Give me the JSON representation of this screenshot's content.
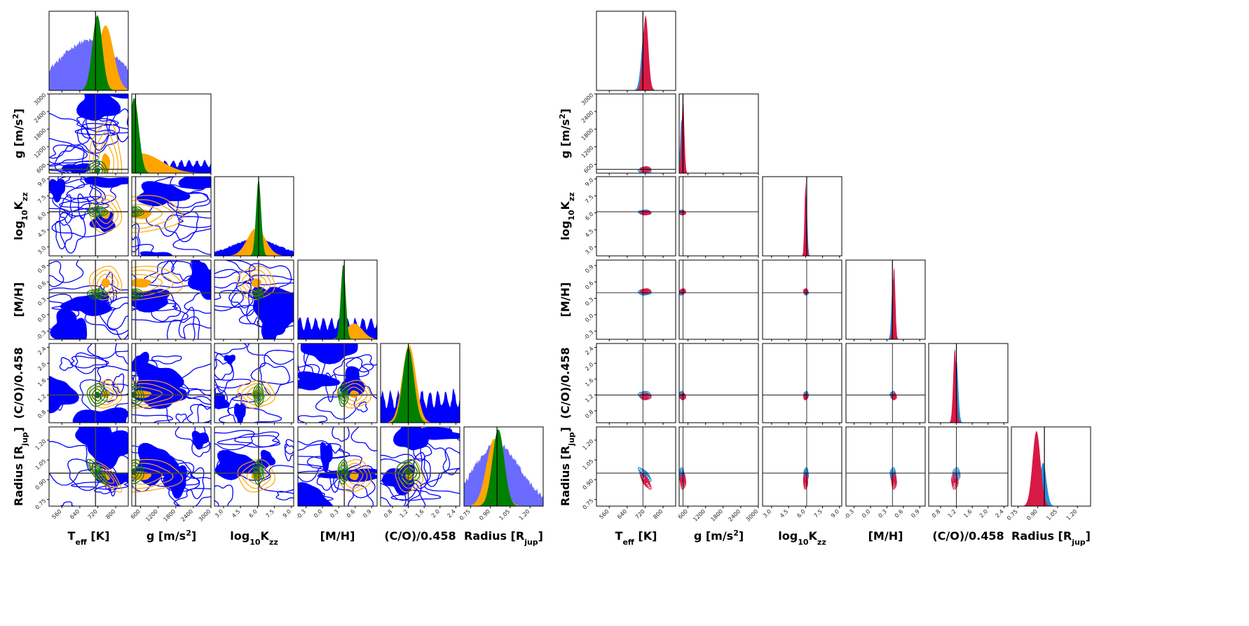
{
  "chart_data": {
    "type": "corner",
    "parameters": [
      {
        "key": "Teff",
        "label": {
          "main": "T",
          "sub": "eff",
          "sup": "",
          "tail": " [K]"
        },
        "range": [
          503,
          856
        ],
        "ticks": [
          "560",
          "640",
          "720",
          "800"
        ],
        "truth": 710
      },
      {
        "key": "g",
        "label": {
          "main": "g [m/s",
          "sub": "",
          "sup": "2",
          "tail": "]"
        },
        "range": [
          300,
          3000
        ],
        "ticks": [
          "600",
          "1200",
          "1800",
          "2400",
          "3000"
        ],
        "truth": 430
      },
      {
        "key": "Kzz",
        "label": {
          "main": "log",
          "sub": "10",
          "sup": "",
          "tail": "K",
          "tail_sub": "zz"
        },
        "range": [
          2.2,
          9.2
        ],
        "ticks": [
          "3.0",
          "4.5",
          "6.0",
          "7.5",
          "9.0"
        ],
        "truth": 6.1
      },
      {
        "key": "MH",
        "label": {
          "main": "[M/H]",
          "sub": "",
          "sup": "",
          "tail": ""
        },
        "range": [
          -0.45,
          1.0
        ],
        "ticks": [
          "-0.3",
          "0.0",
          "0.3",
          "0.6",
          "0.9"
        ],
        "truth": 0.4
      },
      {
        "key": "CO",
        "label": {
          "main": "(C/O)/0.458",
          "sub": "",
          "sup": "",
          "tail": ""
        },
        "range": [
          0.5,
          2.5
        ],
        "ticks": [
          "0.8",
          "1.2",
          "1.6",
          "2.0",
          "2.4"
        ],
        "truth": 1.2
      },
      {
        "key": "R",
        "label": {
          "main": "Radius [R",
          "sub": "jup",
          "sup": "",
          "tail": "]"
        },
        "range": [
          0.7,
          1.3
        ],
        "ticks": [
          "0.75",
          "0.90",
          "1.05",
          "1.20"
        ],
        "truth": 0.95
      }
    ],
    "figures": [
      {
        "name": "left-corner",
        "series": [
          {
            "name": "blue",
            "color": "#0000ff",
            "hist_color": "#0000ff",
            "noisy": true,
            "dists": {
              "Teff": {
                "mean": 680,
                "sd": 130,
                "relative_peak": 0.6
              },
              "g": {
                "type": "uniform",
                "relative_peak": 0.12
              },
              "Kzz": {
                "mean": 5.8,
                "sd": 2.0,
                "relative_peak": 0.2
              },
              "MH": {
                "type": "uniform",
                "relative_peak": 0.2
              },
              "CO": {
                "type": "uniform",
                "relative_peak": 0.3
              },
              "R": {
                "mean": 0.95,
                "sd": 0.17,
                "relative_peak": 0.75
              }
            }
          },
          {
            "name": "orange",
            "color": "#ffa500",
            "hist_color": "#ffa500",
            "dists": {
              "Teff": {
                "mean": 755,
                "sd": 35,
                "relative_peak": 0.82
              },
              "g": {
                "mean": 600,
                "sd": 700,
                "relative_peak": 0.25
              },
              "Kzz": {
                "mean": 5.9,
                "sd": 0.8,
                "relative_peak": 0.35
              },
              "MH": {
                "mean": 0.58,
                "sd": 0.15,
                "relative_peak": 0.2
              },
              "CO": {
                "mean": 1.22,
                "sd": 0.17,
                "relative_peak": 0.98
              },
              "R": {
                "mean": 0.93,
                "sd": 0.06,
                "relative_peak": 0.85
              }
            }
          },
          {
            "name": "green",
            "color": "#008000",
            "hist_color": "#008000",
            "dists": {
              "Teff": {
                "mean": 718,
                "sd": 22,
                "relative_peak": 0.95
              },
              "g": {
                "mean": 380,
                "sd": 160,
                "relative_peak": 0.95
              },
              "Kzz": {
                "mean": 6.1,
                "sd": 0.22,
                "relative_peak": 0.97
              },
              "MH": {
                "mean": 0.38,
                "sd": 0.045,
                "relative_peak": 0.95
              },
              "CO": {
                "mean": 1.2,
                "sd": 0.14,
                "relative_peak": 0.95
              },
              "R": {
                "mean": 0.96,
                "sd": 0.045,
                "relative_peak": 0.97
              }
            }
          }
        ]
      },
      {
        "name": "right-corner",
        "series": [
          {
            "name": "blue",
            "color": "#1f8ad6",
            "hist_color": "#2b8fd9",
            "dists": {
              "Teff": {
                "mean": 718,
                "sd": 14,
                "relative_peak": 0.8
              },
              "g": {
                "mean": 380,
                "sd": 45,
                "relative_peak": 0.7
              },
              "Kzz": {
                "mean": 6.05,
                "sd": 0.1,
                "relative_peak": 0.8
              },
              "MH": {
                "mean": 0.41,
                "sd": 0.025,
                "relative_peak": 0.8
              },
              "CO": {
                "mean": 1.2,
                "sd": 0.045,
                "relative_peak": 0.8
              },
              "R": {
                "mean": 0.94,
                "sd": 0.025,
                "relative_peak": 0.55
              }
            }
          },
          {
            "name": "crimson",
            "color": "#d61a46",
            "hist_color": "#d61a46",
            "dists": {
              "Teff": {
                "mean": 722,
                "sd": 12,
                "relative_peak": 0.95
              },
              "g": {
                "mean": 430,
                "sd": 45,
                "relative_peak": 0.95
              },
              "Kzz": {
                "mean": 6.0,
                "sd": 0.09,
                "relative_peak": 0.95
              },
              "MH": {
                "mean": 0.43,
                "sd": 0.022,
                "relative_peak": 0.95
              },
              "CO": {
                "mean": 1.16,
                "sd": 0.04,
                "relative_peak": 0.95
              },
              "R": {
                "mean": 0.89,
                "sd": 0.03,
                "relative_peak": 0.95
              }
            }
          }
        ]
      }
    ],
    "correlations": [
      {
        "pair": [
          "Teff",
          "R"
        ],
        "rho": -0.8
      }
    ],
    "grid": false,
    "truth_lines": true
  }
}
